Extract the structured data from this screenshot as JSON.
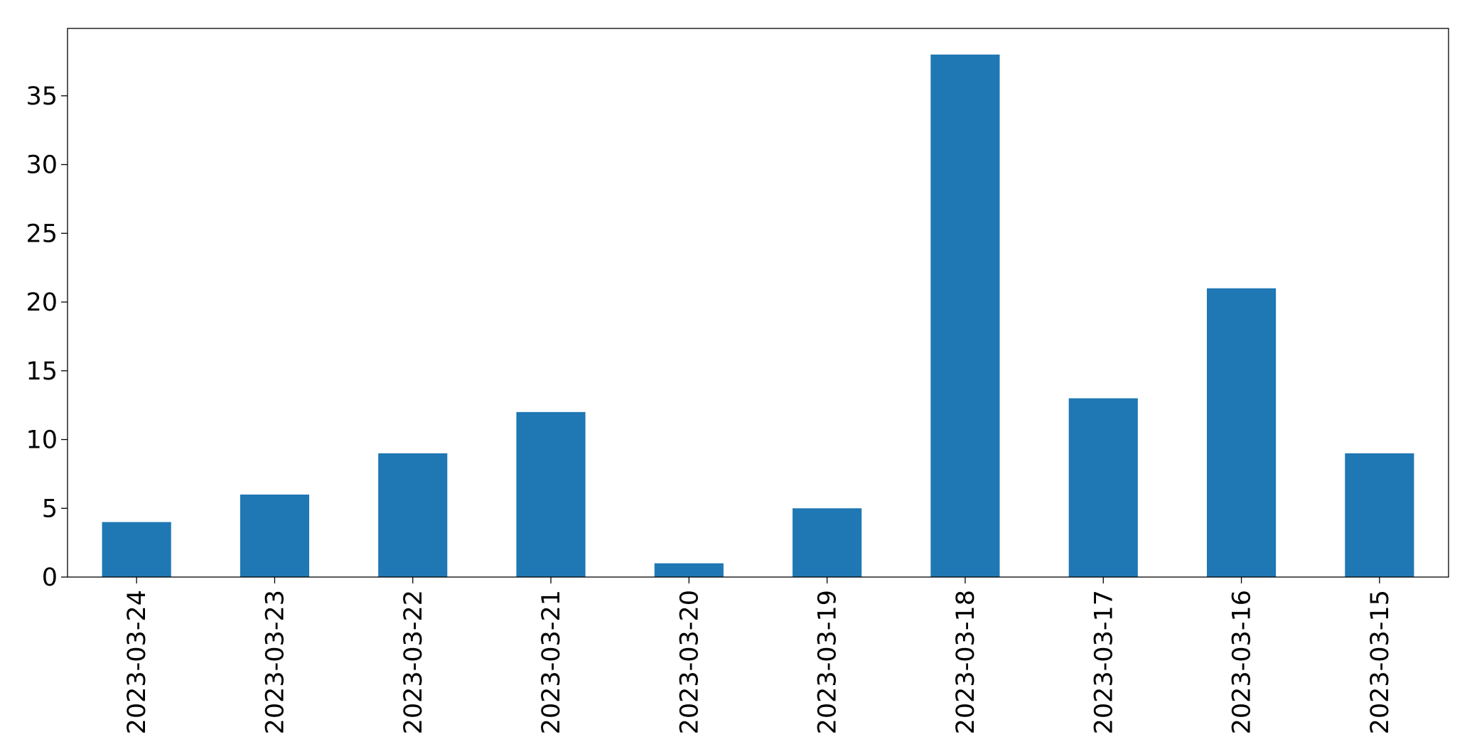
{
  "chart_data": {
    "type": "bar",
    "categories": [
      "2023-03-24",
      "2023-03-23",
      "2023-03-22",
      "2023-03-21",
      "2023-03-20",
      "2023-03-19",
      "2023-03-18",
      "2023-03-17",
      "2023-03-16",
      "2023-03-15"
    ],
    "values": [
      4,
      6,
      9,
      12,
      1,
      5,
      38,
      13,
      21,
      9
    ],
    "title": "",
    "xlabel": "",
    "ylabel": "",
    "ylim": [
      0,
      39.9
    ],
    "yticks": [
      0,
      5,
      10,
      15,
      20,
      25,
      30,
      35
    ],
    "grid": false,
    "legend": "none",
    "bar_color": "#1f77b4"
  }
}
